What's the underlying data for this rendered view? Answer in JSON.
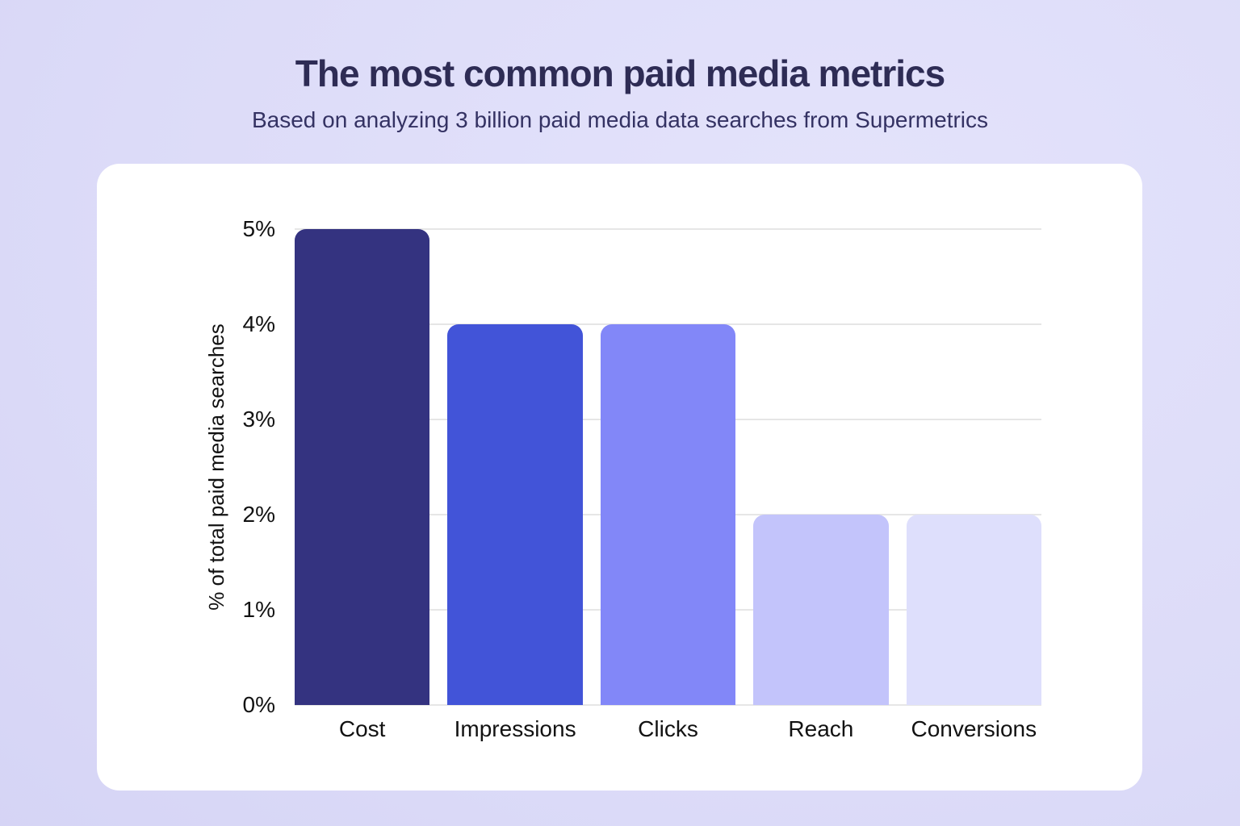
{
  "header": {
    "title": "The most common paid media metrics",
    "subtitle": "Based on analyzing 3 billion paid media data searches from Supermetrics"
  },
  "chart_data": {
    "type": "bar",
    "title": "The most common paid media metrics",
    "subtitle": "Based on analyzing 3 billion paid media data searches from Supermetrics",
    "categories": [
      "Cost",
      "Impressions",
      "Clicks",
      "Reach",
      "Conversions"
    ],
    "values": [
      5,
      4,
      4,
      2,
      2
    ],
    "values_unit": "%",
    "xlabel": "",
    "ylabel": "% of total paid media searches",
    "ylim": [
      0,
      5
    ],
    "yticks": [
      0,
      1,
      2,
      3,
      4,
      5
    ],
    "ytick_labels": [
      "0%",
      "1%",
      "2%",
      "3%",
      "4%",
      "5%"
    ],
    "grid": true,
    "legend": false,
    "bar_colors": [
      "#343380",
      "#4254d8",
      "#8287f8",
      "#c3c4fb",
      "#dedffc"
    ]
  },
  "colors": {
    "page_background": "#dcdbf8",
    "card_background": "#ffffff",
    "title_text": "#2e2c55",
    "subtitle_text": "#343263",
    "axis_text": "#121212",
    "gridline": "#e6e6e6"
  }
}
